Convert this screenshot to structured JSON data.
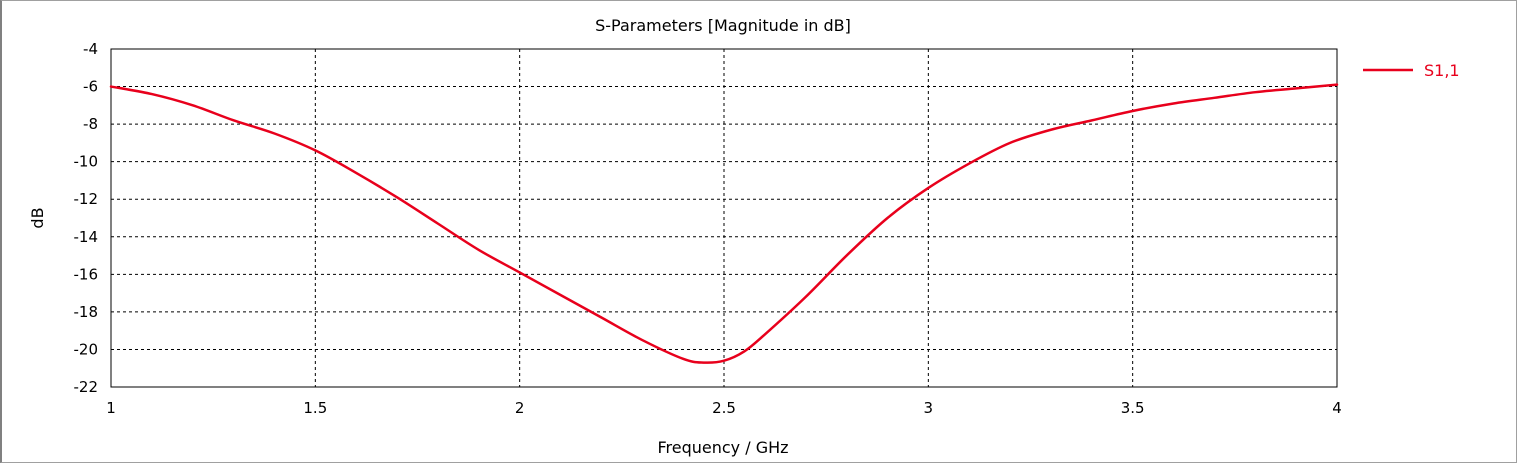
{
  "chart_data": {
    "type": "line",
    "title": "S-Parameters [Magnitude in dB]",
    "xlabel": "Frequency / GHz",
    "ylabel": "dB",
    "xlim": [
      1,
      4
    ],
    "ylim": [
      -22,
      -4
    ],
    "xticks": [
      1,
      1.5,
      2,
      2.5,
      3,
      3.5,
      4
    ],
    "yticks": [
      -4,
      -6,
      -8,
      -10,
      -12,
      -14,
      -16,
      -18,
      -20,
      -22
    ],
    "grid": true,
    "legend_position": "right",
    "series": [
      {
        "name": "S1,1",
        "color": "#e8001c",
        "x": [
          1.0,
          1.1,
          1.2,
          1.3,
          1.4,
          1.5,
          1.6,
          1.7,
          1.8,
          1.9,
          2.0,
          2.1,
          2.2,
          2.3,
          2.4,
          2.45,
          2.5,
          2.55,
          2.6,
          2.7,
          2.8,
          2.9,
          3.0,
          3.1,
          3.2,
          3.3,
          3.4,
          3.5,
          3.6,
          3.7,
          3.8,
          3.9,
          4.0
        ],
        "y": [
          -6.0,
          -6.4,
          -7.0,
          -7.8,
          -8.5,
          -9.4,
          -10.6,
          -11.9,
          -13.3,
          -14.7,
          -15.9,
          -17.1,
          -18.3,
          -19.5,
          -20.5,
          -20.7,
          -20.6,
          -20.1,
          -19.2,
          -17.2,
          -15.0,
          -13.0,
          -11.4,
          -10.1,
          -9.0,
          -8.3,
          -7.8,
          -7.3,
          -6.9,
          -6.6,
          -6.3,
          -6.1,
          -5.9
        ]
      }
    ]
  }
}
